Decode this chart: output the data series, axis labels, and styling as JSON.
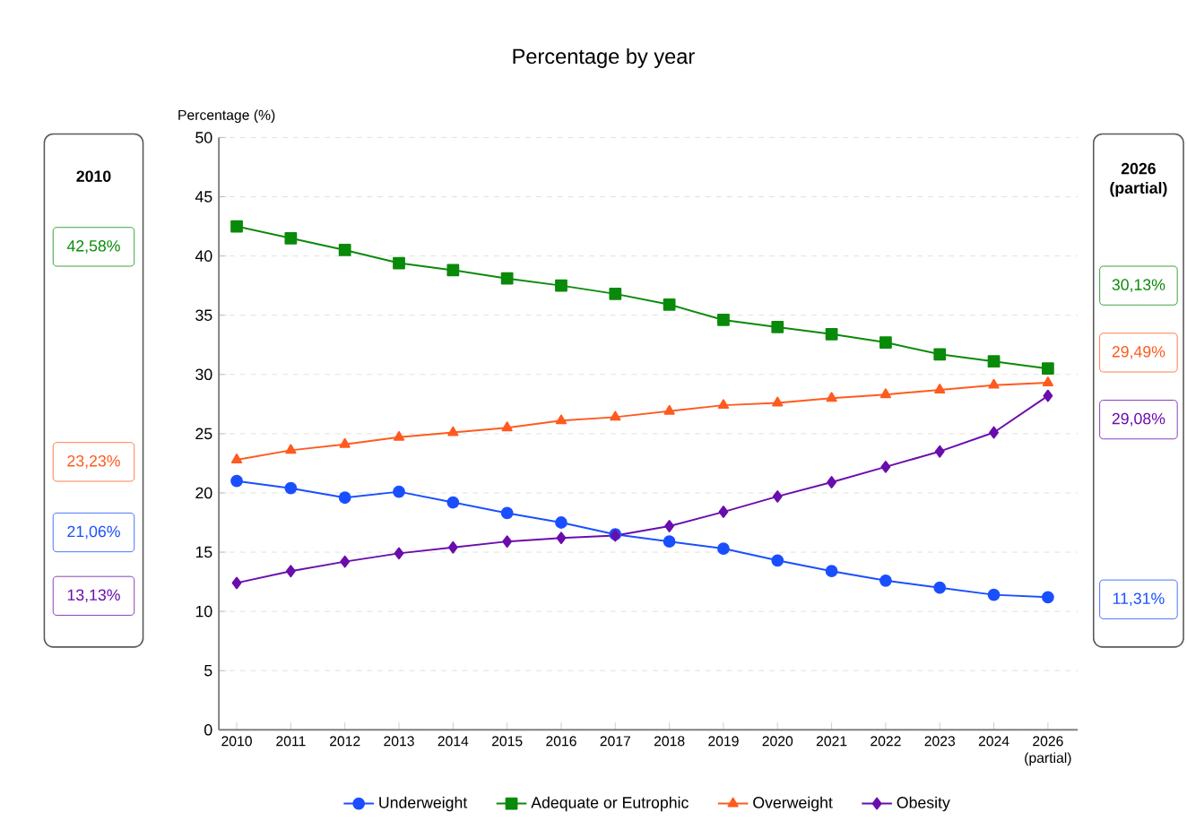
{
  "chart_data": {
    "type": "line",
    "title": "Percentage by year",
    "ylabel": "Percentage (%)",
    "categories": [
      "2010",
      "2011",
      "2012",
      "2013",
      "2014",
      "2015",
      "2016",
      "2017",
      "2018",
      "2019",
      "2020",
      "2021",
      "2022",
      "2023",
      "2024",
      "2026 (partial)"
    ],
    "series": [
      {
        "name": "Underweight",
        "color": "#1a4fff",
        "marker": "circle",
        "values": [
          21.0,
          20.4,
          19.6,
          20.1,
          19.2,
          18.3,
          17.5,
          16.5,
          15.9,
          15.3,
          14.3,
          13.4,
          12.6,
          12.0,
          11.4,
          11.2
        ]
      },
      {
        "name": "Adequate or Eutrophic",
        "color": "#0a8a0a",
        "marker": "square",
        "values": [
          42.5,
          41.5,
          40.5,
          39.4,
          38.8,
          38.1,
          37.5,
          36.8,
          35.9,
          34.6,
          34.0,
          33.4,
          32.7,
          31.7,
          31.1,
          30.5
        ]
      },
      {
        "name": "Overweight",
        "color": "#ff5a1f",
        "marker": "triangle",
        "values": [
          22.8,
          23.6,
          24.1,
          24.7,
          25.1,
          25.5,
          26.1,
          26.4,
          26.9,
          27.4,
          27.6,
          28.0,
          28.3,
          28.7,
          29.1,
          29.3
        ]
      },
      {
        "name": "Obesity",
        "color": "#6a0dad",
        "marker": "diamond",
        "values": [
          12.4,
          13.4,
          14.2,
          14.9,
          15.4,
          15.9,
          16.2,
          16.4,
          17.2,
          18.4,
          19.7,
          20.9,
          22.2,
          23.5,
          25.1,
          28.2
        ]
      }
    ],
    "ylim": [
      0,
      50
    ],
    "yticks": [
      0,
      5,
      10,
      15,
      20,
      25,
      30,
      35,
      40,
      45,
      50
    ],
    "grid": "y",
    "legend": "bottom",
    "line_style": "solid",
    "annotations": [
      "2010",
      "42,58%",
      "23,23%",
      "21,06%",
      "13,13%",
      "2026 (partial)",
      "30,13%",
      "29,49%",
      "29,08%",
      "11,31%"
    ]
  }
}
